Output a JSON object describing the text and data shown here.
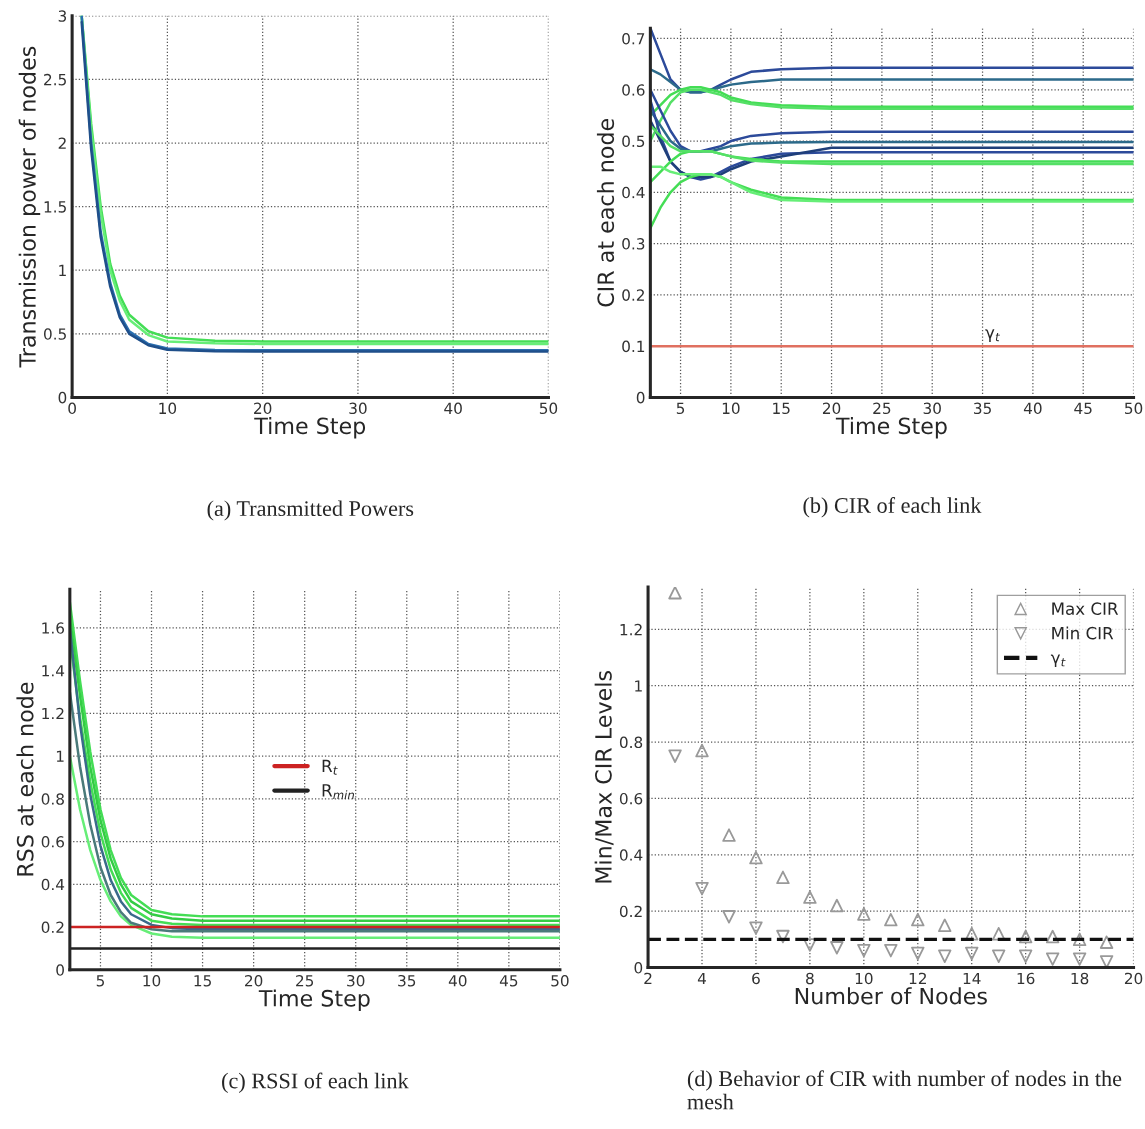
{
  "chart_data": [
    {
      "type": "line",
      "xlabel": "Time Step",
      "ylabel": "Transmission power of nodes",
      "xlim": [
        0,
        50
      ],
      "ylim": [
        0,
        3
      ],
      "xticks": [
        0,
        10,
        20,
        30,
        40,
        50
      ],
      "yticks": [
        0,
        0.5,
        1,
        1.5,
        2,
        2.5,
        3
      ],
      "grid": true,
      "x": [
        1,
        2,
        3,
        4,
        5,
        6,
        8,
        10,
        15,
        20,
        30,
        50
      ],
      "series": [
        {
          "color": "#44dd55",
          "values": [
            3.0,
            2.15,
            1.5,
            1.05,
            0.8,
            0.65,
            0.52,
            0.47,
            0.445,
            0.44,
            0.44,
            0.44
          ]
        },
        {
          "color": "#66ee77",
          "values": [
            3.0,
            2.1,
            1.45,
            1.0,
            0.76,
            0.61,
            0.49,
            0.44,
            0.425,
            0.42,
            0.42,
            0.42
          ]
        },
        {
          "color": "#2a6fb0",
          "values": [
            3.0,
            2.0,
            1.3,
            0.9,
            0.65,
            0.52,
            0.42,
            0.385,
            0.372,
            0.37,
            0.37,
            0.37
          ]
        },
        {
          "color": "#1f4f8a",
          "values": [
            2.95,
            1.95,
            1.26,
            0.87,
            0.63,
            0.5,
            0.41,
            0.375,
            0.362,
            0.36,
            0.36,
            0.36
          ]
        }
      ],
      "annotations": [
        "(a) Transmitted Powers"
      ]
    },
    {
      "type": "line",
      "xlabel": "Time Step",
      "ylabel": "CIR at each node",
      "xlim": [
        2,
        50
      ],
      "ylim": [
        0,
        0.72
      ],
      "xticks": [
        5,
        10,
        15,
        20,
        25,
        30,
        35,
        40,
        45,
        50
      ],
      "yticks": [
        0,
        0.1,
        0.2,
        0.3,
        0.4,
        0.5,
        0.6,
        0.7
      ],
      "grid": true,
      "x": [
        2,
        3,
        4,
        5,
        6,
        7,
        8,
        9,
        10,
        12,
        15,
        20,
        50
      ],
      "series": [
        {
          "color": "#2c4a9a",
          "values": [
            0.72,
            0.67,
            0.62,
            0.6,
            0.595,
            0.595,
            0.6,
            0.61,
            0.62,
            0.635,
            0.64,
            0.643,
            0.643
          ]
        },
        {
          "color": "#2c6a8a",
          "values": [
            0.64,
            0.63,
            0.615,
            0.6,
            0.595,
            0.595,
            0.6,
            0.605,
            0.61,
            0.615,
            0.62,
            0.62,
            0.62
          ]
        },
        {
          "color": "#44dd55",
          "values": [
            0.55,
            0.57,
            0.59,
            0.6,
            0.605,
            0.605,
            0.6,
            0.595,
            0.585,
            0.575,
            0.57,
            0.567,
            0.567
          ]
        },
        {
          "color": "#55e066",
          "values": [
            0.5,
            0.54,
            0.575,
            0.595,
            0.6,
            0.6,
            0.595,
            0.59,
            0.58,
            0.572,
            0.566,
            0.563,
            0.563
          ]
        },
        {
          "color": "#2c4a9a",
          "values": [
            0.6,
            0.56,
            0.52,
            0.49,
            0.48,
            0.48,
            0.485,
            0.49,
            0.5,
            0.51,
            0.515,
            0.518,
            0.518
          ]
        },
        {
          "color": "#2c6a8a",
          "values": [
            0.56,
            0.53,
            0.5,
            0.485,
            0.48,
            0.48,
            0.48,
            0.485,
            0.49,
            0.495,
            0.497,
            0.498,
            0.498
          ]
        },
        {
          "color": "#2c4a9a",
          "values": [
            0.58,
            0.51,
            0.46,
            0.44,
            0.43,
            0.425,
            0.43,
            0.44,
            0.45,
            0.465,
            0.475,
            0.478,
            0.478
          ]
        },
        {
          "color": "#1f3f7a",
          "values": [
            0.54,
            0.5,
            0.46,
            0.44,
            0.43,
            0.43,
            0.43,
            0.435,
            0.445,
            0.46,
            0.47,
            0.487,
            0.487
          ]
        },
        {
          "color": "#44dd55",
          "values": [
            0.42,
            0.44,
            0.46,
            0.475,
            0.48,
            0.48,
            0.48,
            0.475,
            0.47,
            0.465,
            0.46,
            0.46,
            0.46
          ]
        },
        {
          "color": "#55e066",
          "values": [
            0.53,
            0.51,
            0.49,
            0.48,
            0.48,
            0.48,
            0.48,
            0.475,
            0.47,
            0.462,
            0.458,
            0.455,
            0.455
          ]
        },
        {
          "color": "#44dd55",
          "values": [
            0.33,
            0.37,
            0.4,
            0.42,
            0.43,
            0.435,
            0.435,
            0.43,
            0.42,
            0.405,
            0.39,
            0.385,
            0.385
          ]
        },
        {
          "color": "#66ee77",
          "values": [
            0.45,
            0.45,
            0.44,
            0.435,
            0.435,
            0.435,
            0.435,
            0.43,
            0.42,
            0.4,
            0.385,
            0.382,
            0.382
          ]
        }
      ],
      "ref_lines": [
        {
          "axis": "y",
          "value": 0.1,
          "color": "#e07060"
        }
      ],
      "annotations": [
        {
          "text": "γ$_{t}$",
          "x": 36,
          "y": 0.1
        },
        "(b) CIR of each link"
      ]
    },
    {
      "type": "line",
      "xlabel": "Time Step",
      "ylabel": "RSS at each node",
      "xlim": [
        2,
        50
      ],
      "ylim": [
        0,
        1.78
      ],
      "xticks": [
        5,
        10,
        15,
        20,
        25,
        30,
        35,
        40,
        45,
        50
      ],
      "yticks": [
        0,
        0.2,
        0.4,
        0.6,
        0.8,
        1,
        1.2,
        1.4,
        1.6
      ],
      "grid": true,
      "legend": "center",
      "x": [
        2,
        3,
        4,
        5,
        6,
        7,
        8,
        10,
        12,
        15,
        20,
        50
      ],
      "series": [
        {
          "color": "#44dd55",
          "values": [
            1.72,
            1.35,
            1.02,
            0.75,
            0.56,
            0.43,
            0.35,
            0.28,
            0.26,
            0.25,
            0.25,
            0.25
          ]
        },
        {
          "color": "#33cc44",
          "values": [
            1.65,
            1.28,
            0.95,
            0.7,
            0.52,
            0.4,
            0.32,
            0.26,
            0.24,
            0.23,
            0.23,
            0.23
          ]
        },
        {
          "color": "#44dd55",
          "values": [
            1.55,
            1.18,
            0.88,
            0.64,
            0.47,
            0.36,
            0.29,
            0.23,
            0.215,
            0.21,
            0.21,
            0.21
          ]
        },
        {
          "color": "#66ee77",
          "values": [
            1.0,
            0.75,
            0.56,
            0.42,
            0.32,
            0.25,
            0.21,
            0.17,
            0.155,
            0.15,
            0.15,
            0.15
          ]
        },
        {
          "color": "#3a6a8a",
          "values": [
            1.6,
            1.15,
            0.82,
            0.58,
            0.42,
            0.32,
            0.26,
            0.21,
            0.195,
            0.19,
            0.19,
            0.19
          ]
        },
        {
          "color": "#4a7a7a",
          "values": [
            1.3,
            0.95,
            0.68,
            0.48,
            0.35,
            0.27,
            0.22,
            0.19,
            0.18,
            0.18,
            0.18,
            0.18
          ]
        }
      ],
      "ref_lines": [
        {
          "axis": "y",
          "value": 0.2,
          "label": "R$_{t}$",
          "color": "#cc2222"
        },
        {
          "axis": "y",
          "value": 0.1,
          "label": "R$_{min}$",
          "color": "#222222"
        }
      ],
      "annotations": [
        "(c) RSSI of each link"
      ]
    },
    {
      "type": "scatter",
      "xlabel": "Number of Nodes",
      "ylabel": "Min/Max CIR Levels",
      "xlim": [
        2,
        20
      ],
      "ylim": [
        0,
        1.35
      ],
      "xticks": [
        2,
        4,
        6,
        8,
        10,
        12,
        14,
        16,
        18,
        20
      ],
      "yticks": [
        0,
        0.2,
        0.4,
        0.6,
        0.8,
        1,
        1.2
      ],
      "grid": true,
      "legend": "top right",
      "x": [
        3,
        4,
        5,
        6,
        7,
        8,
        9,
        10,
        11,
        12,
        13,
        14,
        15,
        16,
        17,
        18,
        19
      ],
      "series": [
        {
          "name": "Max CIR",
          "color": "#999999",
          "marker": "triangle",
          "values": [
            1.33,
            0.77,
            0.47,
            0.39,
            0.32,
            0.25,
            0.22,
            0.19,
            0.17,
            0.17,
            0.15,
            0.12,
            0.12,
            0.11,
            0.11,
            0.1,
            0.09
          ]
        },
        {
          "name": "Min CIR",
          "color": "#999999",
          "marker": "triangle-down",
          "values": [
            0.75,
            0.28,
            0.18,
            0.14,
            0.11,
            0.08,
            0.07,
            0.06,
            0.06,
            0.05,
            0.04,
            0.05,
            0.04,
            0.04,
            0.03,
            0.03,
            0.02
          ]
        }
      ],
      "ref_lines": [
        {
          "axis": "y",
          "value": 0.1,
          "label": "γ$_{t}$",
          "color": "#111111",
          "line_style": "dashed"
        }
      ],
      "annotations": [
        "(d) Behavior of CIR with number of nodes in the mesh"
      ]
    }
  ]
}
